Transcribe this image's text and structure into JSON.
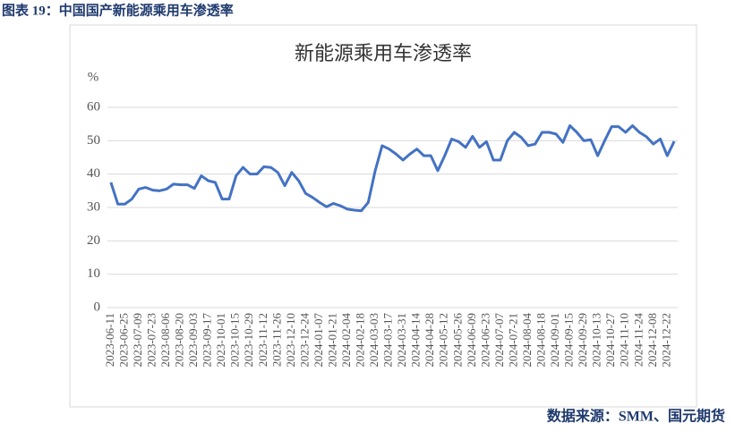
{
  "caption": "图表 19：中国国产新能源乘用车渗透率",
  "source": "数据来源：SMM、国元期货",
  "chart_data": {
    "type": "line",
    "title": "新能源乘用车渗透率",
    "y_label": "%",
    "categories": [
      "2023-06-11",
      null,
      "2023-06-25",
      null,
      "2023-07-09",
      null,
      "2023-07-23",
      null,
      "2023-08-06",
      null,
      "2023-08-20",
      null,
      "2023-09-03",
      null,
      "2023-09-17",
      null,
      "2023-10-01",
      null,
      "2023-10-15",
      null,
      "2023-10-29",
      null,
      "2023-11-12",
      null,
      "2023-11-26",
      null,
      "2023-12-10",
      null,
      "2023-12-24",
      null,
      "2024-01-07",
      null,
      "2024-01-21",
      null,
      "2024-02-04",
      null,
      "2024-02-18",
      null,
      "2024-03-03",
      null,
      "2024-03-17",
      null,
      "2024-03-31",
      null,
      "2024-04-14",
      null,
      "2024-04-28",
      null,
      "2024-05-12",
      null,
      "2024-05-26",
      null,
      "2024-06-09",
      null,
      "2024-06-23",
      null,
      "2024-07-07",
      null,
      "2024-07-21",
      null,
      "2024-08-04",
      null,
      "2024-08-18",
      null,
      "2024-09-01",
      null,
      "2024-09-15",
      null,
      "2024-09-29",
      null,
      "2024-10-13",
      null,
      "2024-10-27",
      null,
      "2024-11-10",
      null,
      "2024-11-24",
      null,
      "2024-12-08",
      null,
      "2024-12-22",
      null
    ],
    "series": [
      {
        "name": "新能源乘用车渗透率",
        "color": "#4472c4",
        "values": [
          37.5,
          31,
          31,
          32.5,
          35.5,
          36,
          35.2,
          35,
          35.5,
          37,
          36.8,
          36.8,
          35.7,
          39.5,
          38,
          37.5,
          32.5,
          32.5,
          39.5,
          42,
          40,
          40,
          42.2,
          42,
          40.5,
          36.5,
          40.5,
          38,
          34.2,
          33,
          31.5,
          30.2,
          31.2,
          30.5,
          29.5,
          29.2,
          29,
          31.5,
          41,
          48.5,
          47.5,
          46,
          44.2,
          46,
          47.5,
          45.5,
          45.5,
          41,
          45.5,
          50.5,
          49.7,
          48,
          51.3,
          48,
          49.7,
          44.2,
          44.2,
          50,
          52.5,
          51,
          48.5,
          49,
          52.5,
          52.5,
          52,
          49.5,
          54.5,
          52.5,
          50,
          50.3,
          45.5,
          50,
          54.2,
          54.2,
          52.5,
          54.5,
          52.5,
          51.2,
          49,
          50.5,
          45.5,
          49.8
        ]
      }
    ],
    "ylim": [
      0,
      60
    ],
    "yticks": [
      0,
      10,
      20,
      30,
      40,
      50,
      60
    ],
    "grid": true
  }
}
